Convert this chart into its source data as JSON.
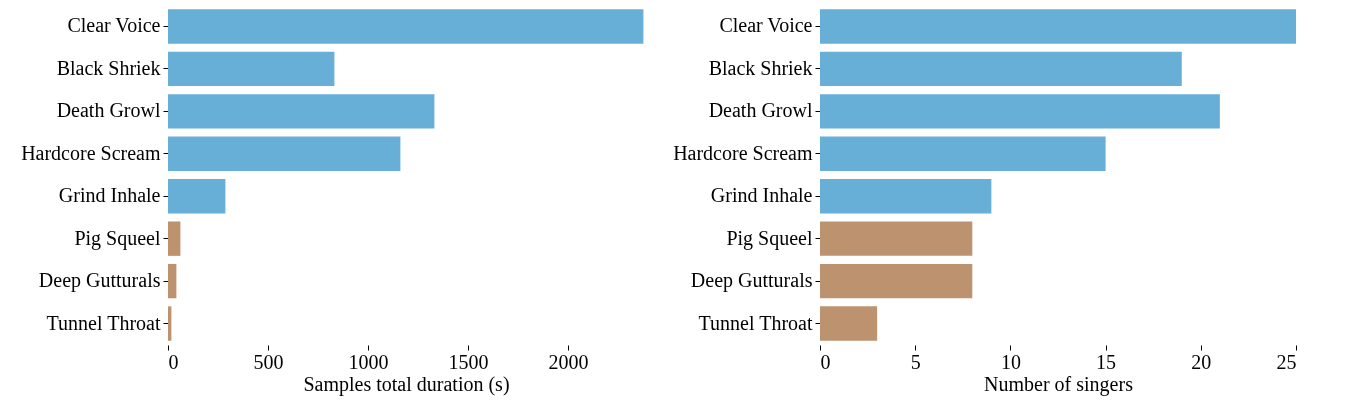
{
  "chart_data": [
    {
      "type": "bar",
      "orientation": "horizontal",
      "categories": [
        "Clear Voice",
        "Black Shriek",
        "Death Growl",
        "Hardcore Scream",
        "Grind Inhale",
        "Pig Squeel",
        "Deep Gutturals",
        "Tunnel Throat"
      ],
      "values": [
        2377,
        832,
        1332,
        1162,
        287,
        62,
        42,
        17
      ],
      "colors": [
        "#67afd6",
        "#67afd6",
        "#67afd6",
        "#67afd6",
        "#67afd6",
        "#bd936f",
        "#bd936f",
        "#bd936f"
      ],
      "xlabel": "Samples total duration (s)",
      "xlim": [
        0,
        2380
      ],
      "xticks": [
        0,
        500,
        1000,
        1500,
        2000
      ],
      "grid": false
    },
    {
      "type": "bar",
      "orientation": "horizontal",
      "categories": [
        "Clear Voice",
        "Black Shriek",
        "Death Growl",
        "Hardcore Scream",
        "Grind Inhale",
        "Pig Squeel",
        "Deep Gutturals",
        "Tunnel Throat"
      ],
      "values": [
        25,
        19,
        21,
        15,
        9,
        8,
        8,
        3
      ],
      "colors": [
        "#67afd6",
        "#67afd6",
        "#67afd6",
        "#67afd6",
        "#67afd6",
        "#bd936f",
        "#bd936f",
        "#bd936f"
      ],
      "xlabel": "Number of singers",
      "xlim": [
        0,
        25
      ],
      "xticks": [
        0,
        5,
        10,
        15,
        20,
        25
      ],
      "grid": false
    }
  ]
}
